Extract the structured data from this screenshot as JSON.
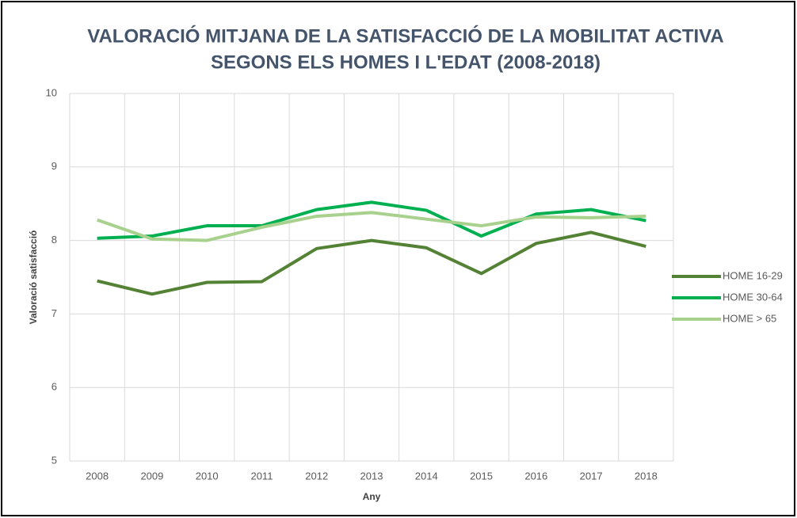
{
  "chart_data": {
    "type": "line",
    "title": [
      "VALORACIÓ MITJANA DE LA SATISFACCIÓ DE LA MOBILITAT ACTIVA",
      "SEGONS ELS HOMES I L'EDAT (2008-2018)"
    ],
    "x_label": "Any",
    "y_label": "Valoració satisfacció",
    "categories": [
      "2008",
      "2009",
      "2010",
      "2011",
      "2012",
      "2013",
      "2014",
      "2015",
      "2016",
      "2017",
      "2018"
    ],
    "series": [
      {
        "name": "HOME 16-29",
        "color": "#548235",
        "values": [
          7.45,
          7.27,
          7.43,
          7.44,
          7.89,
          8.0,
          7.9,
          7.55,
          7.96,
          8.11,
          7.92
        ]
      },
      {
        "name": "HOME 30-64",
        "color": "#00b050",
        "values": [
          8.03,
          8.06,
          8.2,
          8.2,
          8.42,
          8.52,
          8.41,
          8.06,
          8.36,
          8.42,
          8.27
        ]
      },
      {
        "name": "HOME > 65",
        "color": "#a9d18e",
        "values": [
          8.28,
          8.02,
          8.0,
          8.18,
          8.33,
          8.38,
          8.29,
          8.2,
          8.32,
          8.31,
          8.33
        ]
      }
    ],
    "ylim": [
      5,
      10
    ],
    "yticks": [
      5,
      6,
      7,
      8,
      9,
      10
    ],
    "grid": true,
    "legend": "right"
  }
}
